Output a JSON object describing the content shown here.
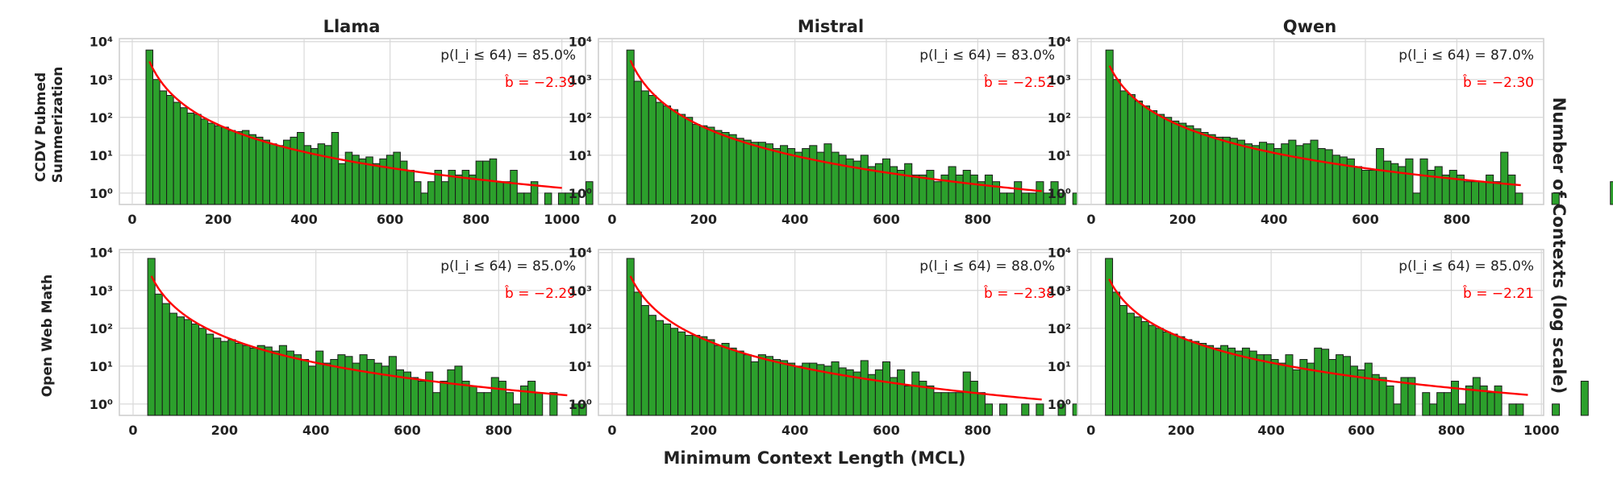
{
  "figure": {
    "xlabel": "Minimum Context Length (MCL)",
    "ylabel": "Number of Contexts (log scale)",
    "columns": [
      "Llama",
      "Mistral",
      "Qwen"
    ],
    "rows": [
      "CCDV Pubmed\nSummerization",
      "Open Web Math"
    ]
  },
  "colors": {
    "bar": "#2ca02c",
    "bar_edge": "#1a1a1a",
    "fit": "#ff0000",
    "grid": "#d9d9d9",
    "frame": "#cccccc"
  },
  "chart_data": [
    {
      "type": "bar",
      "row": "CCDV Pubmed Summerization",
      "column": "Llama",
      "annotation_p": "p(l_i ≤ 64) = 85.0%",
      "annotation_b": "b̂ = −2.39",
      "b_hat": -2.39,
      "xlim": [
        -30,
        1055
      ],
      "xticks": [
        0,
        200,
        400,
        600,
        800,
        1000
      ],
      "yscale": "log",
      "ylim": [
        0.5,
        12000
      ],
      "yticks": [
        "10⁰",
        "10¹",
        "10²",
        "10³",
        "10⁴"
      ],
      "bin_width": 16,
      "x_start": 32,
      "counts": [
        6000,
        1000,
        500,
        380,
        250,
        180,
        130,
        120,
        90,
        70,
        60,
        55,
        45,
        42,
        45,
        35,
        30,
        25,
        20,
        18,
        25,
        30,
        40,
        18,
        15,
        20,
        18,
        40,
        6,
        12,
        10,
        8,
        9,
        6,
        8,
        10,
        12,
        7,
        4,
        2,
        1,
        2,
        4,
        2,
        4,
        3,
        4,
        3,
        7,
        7,
        8,
        2,
        2,
        4,
        1,
        1,
        2,
        0,
        1,
        0,
        1,
        1,
        1,
        0,
        2,
        0,
        1
      ],
      "fit": {
        "A": 3000,
        "x0": 40,
        "x1": 1000
      }
    },
    {
      "type": "bar",
      "row": "CCDV Pubmed Summerization",
      "column": "Mistral",
      "annotation_p": "p(l_i ≤ 64) = 83.0%",
      "annotation_b": "b̂ = −2.52",
      "b_hat": -2.52,
      "xlim": [
        -30,
        990
      ],
      "xticks": [
        0,
        200,
        400,
        600,
        800
      ],
      "yscale": "log",
      "ylim": [
        0.5,
        12000
      ],
      "yticks": [
        "10⁰",
        "10¹",
        "10²",
        "10³",
        "10⁴"
      ],
      "bin_width": 16,
      "x_start": 32,
      "counts": [
        6000,
        900,
        500,
        380,
        250,
        200,
        160,
        120,
        100,
        65,
        60,
        55,
        45,
        40,
        35,
        28,
        25,
        22,
        22,
        20,
        15,
        18,
        15,
        12,
        15,
        18,
        12,
        20,
        12,
        10,
        8,
        7,
        10,
        5,
        6,
        8,
        5,
        4,
        6,
        3,
        3,
        4,
        2,
        3,
        5,
        3,
        4,
        3,
        2,
        3,
        2,
        1,
        1,
        2,
        1,
        1,
        2,
        1,
        2,
        1,
        0,
        1,
        2,
        2,
        0,
        1,
        1
      ],
      "fit": {
        "A": 3200,
        "x0": 40,
        "x1": 940
      }
    },
    {
      "type": "bar",
      "row": "CCDV Pubmed Summerization",
      "column": "Qwen",
      "annotation_p": "p(l_i ≤ 64) = 87.0%",
      "annotation_b": "b̂ = −2.30",
      "b_hat": -2.3,
      "xlim": [
        -30,
        990
      ],
      "xticks": [
        0,
        200,
        400,
        600,
        800
      ],
      "yscale": "log",
      "ylim": [
        0.5,
        12000
      ],
      "yticks": [
        "10⁰",
        "10¹",
        "10²",
        "10³",
        "10⁴"
      ],
      "bin_width": 16,
      "x_start": 32,
      "counts": [
        6000,
        1000,
        500,
        400,
        270,
        200,
        150,
        120,
        100,
        80,
        70,
        60,
        50,
        40,
        35,
        30,
        30,
        28,
        25,
        20,
        18,
        22,
        20,
        15,
        20,
        25,
        18,
        20,
        25,
        15,
        14,
        10,
        9,
        8,
        5,
        4,
        4,
        15,
        7,
        6,
        5,
        8,
        1,
        8,
        4,
        5,
        3,
        4,
        3,
        2,
        2,
        2,
        3,
        2,
        12,
        3,
        1,
        0,
        0,
        0,
        0,
        1,
        0,
        0,
        0,
        0,
        0,
        0,
        0,
        2
      ],
      "fit": {
        "A": 2300,
        "x0": 40,
        "x1": 940
      }
    },
    {
      "type": "bar",
      "row": "Open Web Math",
      "column": "Llama",
      "annotation_p": "p(l_i ≤ 64) = 85.0%",
      "annotation_b": "b̂ = −2.29",
      "b_hat": -2.29,
      "xlim": [
        -30,
        990
      ],
      "xticks": [
        0,
        200,
        400,
        600,
        800
      ],
      "yscale": "log",
      "ylim": [
        0.5,
        12000
      ],
      "yticks": [
        "10⁰",
        "10¹",
        "10²",
        "10³",
        "10⁴"
      ],
      "bin_width": 16,
      "x_start": 32,
      "counts": [
        7000,
        800,
        450,
        250,
        200,
        170,
        130,
        100,
        70,
        55,
        45,
        50,
        40,
        35,
        30,
        35,
        32,
        25,
        35,
        25,
        20,
        15,
        10,
        25,
        12,
        15,
        20,
        18,
        12,
        20,
        15,
        12,
        10,
        18,
        8,
        7,
        5,
        4,
        7,
        2,
        4,
        8,
        10,
        4,
        3,
        2,
        2,
        5,
        4,
        2,
        1,
        3,
        4,
        2,
        0,
        2,
        0,
        0,
        1,
        1,
        0,
        0,
        2,
        0,
        2
      ],
      "fit": {
        "A": 2400,
        "x0": 40,
        "x1": 950
      }
    },
    {
      "type": "bar",
      "row": "Open Web Math",
      "column": "Mistral",
      "annotation_p": "p(l_i ≤ 64) = 88.0%",
      "annotation_b": "b̂ = −2.38",
      "b_hat": -2.38,
      "xlim": [
        -30,
        990
      ],
      "xticks": [
        0,
        200,
        400,
        600,
        800
      ],
      "yscale": "log",
      "ylim": [
        0.5,
        12000
      ],
      "yticks": [
        "10⁰",
        "10¹",
        "10²",
        "10³",
        "10⁴"
      ],
      "bin_width": 16,
      "x_start": 32,
      "counts": [
        7000,
        900,
        400,
        220,
        160,
        130,
        100,
        80,
        65,
        65,
        60,
        50,
        35,
        40,
        30,
        25,
        20,
        13,
        20,
        18,
        15,
        14,
        12,
        10,
        12,
        12,
        11,
        10,
        13,
        9,
        8,
        7,
        14,
        6,
        8,
        13,
        5,
        8,
        3,
        7,
        4,
        3,
        2,
        2,
        2,
        2,
        7,
        4,
        2,
        1,
        0,
        1,
        0,
        0,
        1,
        0,
        1,
        0,
        0,
        1,
        0,
        1
      ],
      "fit": {
        "A": 2400,
        "x0": 40,
        "x1": 940
      }
    },
    {
      "type": "bar",
      "row": "Open Web Math",
      "column": "Qwen",
      "annotation_p": "p(l_i ≤ 64) = 85.0%",
      "annotation_b": "b̂ = −2.21",
      "b_hat": -2.21,
      "xlim": [
        -30,
        1005
      ],
      "xticks": [
        0,
        200,
        400,
        600,
        800,
        1000
      ],
      "yscale": "log",
      "ylim": [
        0.5,
        12000
      ],
      "yticks": [
        "10⁰",
        "10¹",
        "10²",
        "10³",
        "10⁴"
      ],
      "bin_width": 16,
      "x_start": 32,
      "counts": [
        7000,
        900,
        400,
        250,
        200,
        150,
        120,
        100,
        80,
        70,
        60,
        50,
        45,
        40,
        35,
        30,
        35,
        30,
        25,
        30,
        25,
        20,
        20,
        15,
        12,
        20,
        8,
        15,
        12,
        30,
        28,
        15,
        20,
        18,
        10,
        8,
        12,
        6,
        5,
        3,
        1,
        5,
        5,
        0,
        2,
        1,
        2,
        2,
        4,
        1,
        3,
        5,
        3,
        2,
        3,
        0,
        1,
        1,
        0,
        0,
        0,
        0,
        1,
        0,
        0,
        0,
        4
      ],
      "fit": {
        "A": 2000,
        "x0": 40,
        "x1": 970
      }
    }
  ]
}
